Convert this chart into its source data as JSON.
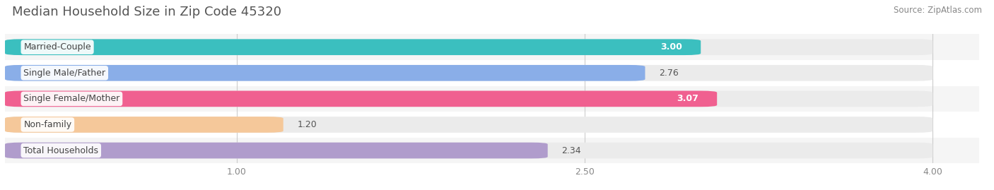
{
  "title": "Median Household Size in Zip Code 45320",
  "source": "Source: ZipAtlas.com",
  "categories": [
    "Married-Couple",
    "Single Male/Father",
    "Single Female/Mother",
    "Non-family",
    "Total Households"
  ],
  "values": [
    3.0,
    2.76,
    3.07,
    1.2,
    2.34
  ],
  "bar_colors": [
    "#3bbfbf",
    "#8aaee8",
    "#f06090",
    "#f5c89a",
    "#b09ccc"
  ],
  "value_inside": [
    true,
    false,
    true,
    false,
    false
  ],
  "value_labels": [
    "3.00",
    "2.76",
    "3.07",
    "1.20",
    "2.34"
  ],
  "xlim": [
    0.0,
    4.2
  ],
  "xdata_max": 4.0,
  "xticks": [
    1.0,
    2.5,
    4.0
  ],
  "background_color": "#ffffff",
  "bar_bg_color": "#ebebeb",
  "stripe_color": "#f5f5f5",
  "title_fontsize": 13,
  "source_fontsize": 8.5,
  "bar_height": 0.62,
  "value_fontsize": 9,
  "cat_label_fontsize": 9,
  "cat_label_color": "#444444",
  "value_color_inside": "#ffffff",
  "value_color_outside": "#555555",
  "tick_color": "#888888",
  "tick_fontsize": 9
}
